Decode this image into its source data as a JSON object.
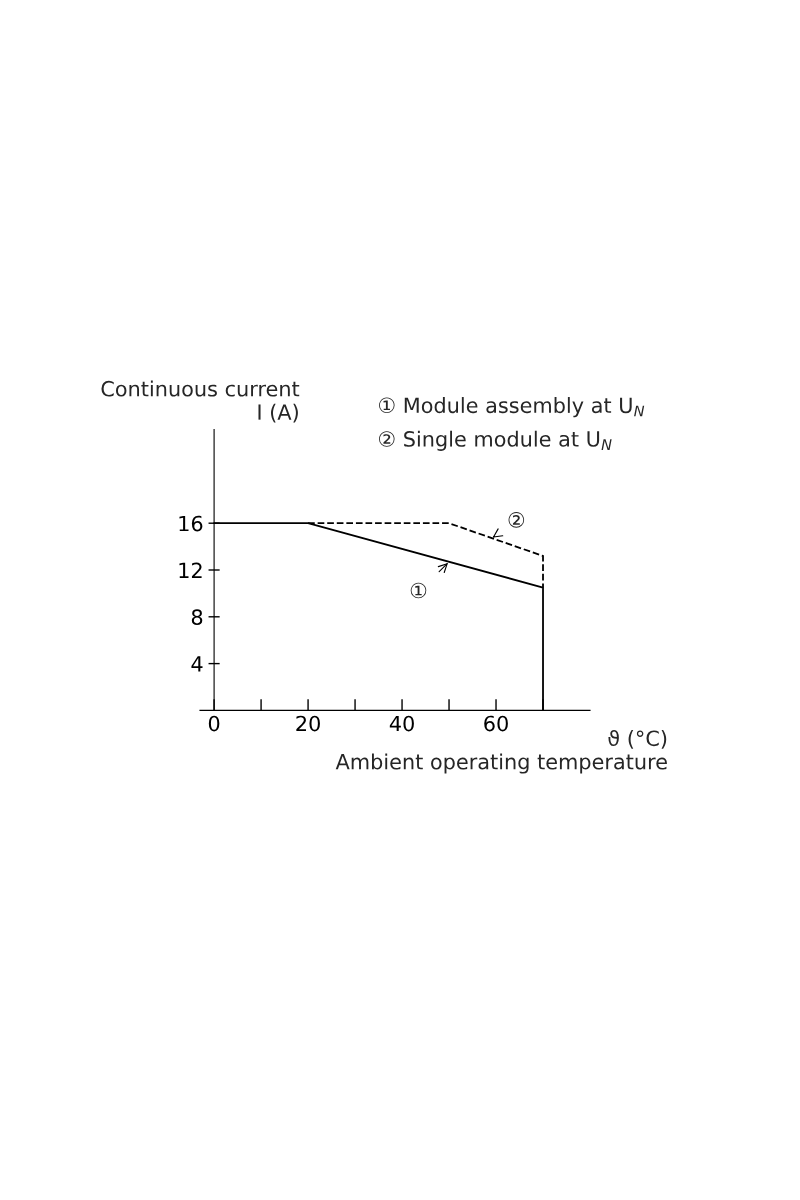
{
  "chart_data": {
    "type": "line",
    "xlabel": "ϑ (°C)\nAmbient operating temperature",
    "ylabel": "Continuous current\nI (A)",
    "series": [
      {
        "x": [
          0,
          20,
          70,
          70
        ],
        "values": [
          16,
          16,
          10.5,
          0
        ],
        "color": "#000000",
        "line_style": "solid"
      },
      {
        "x": [
          20,
          50,
          70,
          70
        ],
        "values": [
          16,
          16,
          13.2,
          10.5
        ],
        "color": "#000000",
        "line_style": "dashed"
      }
    ],
    "xlim": [
      -3,
      80
    ],
    "ylim": [
      0,
      24
    ],
    "xticks": [
      0,
      {
        "value": 10,
        "label": null
      },
      20,
      {
        "value": 30,
        "label": null
      },
      40,
      {
        "value": 50,
        "label": null
      },
      60,
      {
        "value": 70,
        "label": null
      }
    ],
    "yticks": [
      4,
      8,
      12,
      16
    ],
    "annotations": [
      "① Module assembly at U$_{N}$",
      "② Single module at U$_{N}$",
      {
        "text": "①",
        "x": 50,
        "y": 12.7
      },
      {
        "text": "②",
        "x": 59,
        "y": 14.7
      }
    ],
    "grid": false,
    "marker": "none"
  }
}
